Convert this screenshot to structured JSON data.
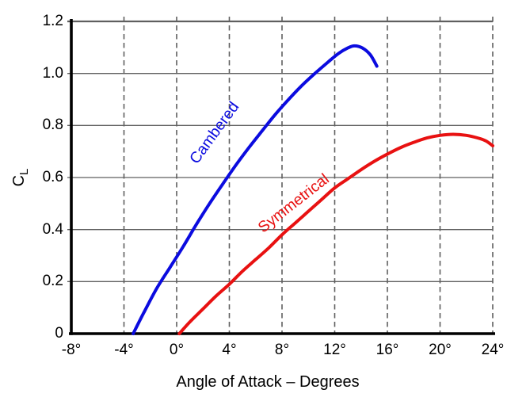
{
  "chart_data": {
    "type": "line",
    "title": "",
    "xlabel": "Angle of Attack – Degrees",
    "ylabel": {
      "main": "C",
      "subscript": "L"
    },
    "xlim": [
      -8,
      24
    ],
    "ylim": [
      0,
      1.2
    ],
    "x_ticks": [
      {
        "value": -8,
        "label": "-8°"
      },
      {
        "value": -4,
        "label": "-4°"
      },
      {
        "value": 0,
        "label": "0°"
      },
      {
        "value": 4,
        "label": "4°"
      },
      {
        "value": 8,
        "label": "8°"
      },
      {
        "value": 12,
        "label": "12°"
      },
      {
        "value": 16,
        "label": "16°"
      },
      {
        "value": 20,
        "label": "20°"
      },
      {
        "value": 24,
        "label": "24°"
      }
    ],
    "y_ticks": [
      {
        "value": 0,
        "label": "0"
      },
      {
        "value": 0.2,
        "label": "0.2"
      },
      {
        "value": 0.4,
        "label": "0.4"
      },
      {
        "value": 0.6,
        "label": "0.6"
      },
      {
        "value": 0.8,
        "label": "0.8"
      },
      {
        "value": 1.0,
        "label": "1.0"
      },
      {
        "value": 1.2,
        "label": "1.2"
      }
    ],
    "grid": {
      "horizontal_style": "solid",
      "vertical_style": "dashed",
      "grid_color": "#5f5f5f",
      "axis_color": "#000000"
    },
    "legend_position": "inline-labels",
    "series": [
      {
        "name": "Cambered",
        "color": "#0b0bdf",
        "label_pos": {
          "x": 2.9,
          "y": 0.77
        },
        "label_rotation_deg": -54,
        "points": [
          [
            -3.3,
            0
          ],
          [
            -2.5,
            0.08
          ],
          [
            -1.5,
            0.175
          ],
          [
            -0.5,
            0.255
          ],
          [
            0.5,
            0.335
          ],
          [
            1.5,
            0.42
          ],
          [
            2.5,
            0.5
          ],
          [
            3.5,
            0.575
          ],
          [
            4.5,
            0.648
          ],
          [
            5.5,
            0.716
          ],
          [
            6.5,
            0.78
          ],
          [
            7.5,
            0.843
          ],
          [
            8.5,
            0.9
          ],
          [
            9.5,
            0.953
          ],
          [
            10.5,
            1.0
          ],
          [
            11.5,
            1.044
          ],
          [
            12.3,
            1.077
          ],
          [
            13.0,
            1.098
          ],
          [
            13.5,
            1.106
          ],
          [
            14.1,
            1.098
          ],
          [
            14.7,
            1.072
          ],
          [
            15.2,
            1.028
          ]
        ]
      },
      {
        "name": "Symmetrical",
        "color": "#e81111",
        "label_pos": {
          "x": 8.9,
          "y": 0.5
        },
        "label_rotation_deg": -38,
        "points": [
          [
            0.2,
            0
          ],
          [
            1,
            0.045
          ],
          [
            2,
            0.095
          ],
          [
            3,
            0.145
          ],
          [
            4,
            0.19
          ],
          [
            5,
            0.24
          ],
          [
            6,
            0.285
          ],
          [
            7,
            0.33
          ],
          [
            8,
            0.38
          ],
          [
            9,
            0.425
          ],
          [
            10,
            0.47
          ],
          [
            11,
            0.515
          ],
          [
            12,
            0.56
          ],
          [
            13,
            0.595
          ],
          [
            14,
            0.63
          ],
          [
            15,
            0.662
          ],
          [
            16,
            0.69
          ],
          [
            17,
            0.715
          ],
          [
            18,
            0.735
          ],
          [
            19,
            0.752
          ],
          [
            20,
            0.762
          ],
          [
            21,
            0.766
          ],
          [
            22,
            0.762
          ],
          [
            23,
            0.75
          ],
          [
            23.5,
            0.74
          ],
          [
            24,
            0.722
          ]
        ]
      }
    ]
  }
}
